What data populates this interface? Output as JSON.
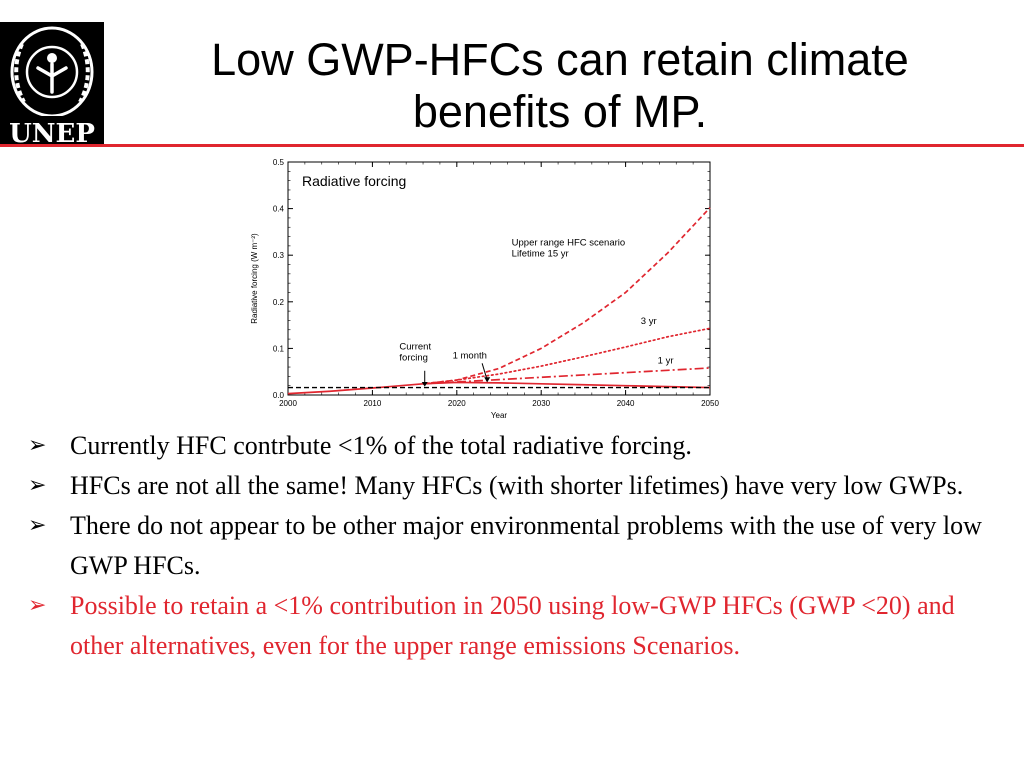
{
  "header": {
    "title_line1": "Low GWP-HFCs can retain climate",
    "title_line2": "benefits of MP.",
    "logo_text": "UNEP",
    "accent_color": "#e0262f"
  },
  "chart_data": {
    "type": "line",
    "inner_title": "Radiative forcing",
    "xlabel": "Year",
    "ylabel": "Radiative forcing  (W m⁻²)",
    "xlim": [
      2000,
      2050
    ],
    "ylim": [
      0,
      0.5
    ],
    "xticks": [
      "2000",
      "2010",
      "2020",
      "2030",
      "2040",
      "2050"
    ],
    "yticks": [
      "0.0",
      "0.1",
      "0.2",
      "0.3",
      "0.4",
      "0.5"
    ],
    "series": [
      {
        "key": "upper",
        "style": "dashed",
        "color": "#e0262f",
        "x": [
          2016,
          2020,
          2025,
          2030,
          2035,
          2040,
          2045,
          2050
        ],
        "y": [
          0.024,
          0.032,
          0.057,
          0.1,
          0.155,
          0.22,
          0.305,
          0.402
        ]
      },
      {
        "key": "3yr",
        "style": "dotted",
        "color": "#e0262f",
        "x": [
          2016,
          2020,
          2025,
          2030,
          2035,
          2040,
          2045,
          2050
        ],
        "y": [
          0.024,
          0.032,
          0.045,
          0.062,
          0.082,
          0.103,
          0.125,
          0.143
        ]
      },
      {
        "key": "1yr",
        "style": "dashdot",
        "color": "#e0262f",
        "x": [
          2016,
          2020,
          2025,
          2030,
          2035,
          2040,
          2045,
          2050
        ],
        "y": [
          0.024,
          0.028,
          0.033,
          0.038,
          0.043,
          0.048,
          0.053,
          0.058
        ]
      },
      {
        "key": "1month",
        "style": "solid",
        "color": "#e0262f",
        "x": [
          2000,
          2005,
          2010,
          2016,
          2020,
          2025,
          2030,
          2035,
          2040,
          2045,
          2050
        ],
        "y": [
          0.003,
          0.008,
          0.015,
          0.024,
          0.027,
          0.026,
          0.024,
          0.022,
          0.02,
          0.018,
          0.016
        ]
      },
      {
        "key": "current",
        "style": "dashed",
        "color": "#000000",
        "x": [
          2000,
          2050
        ],
        "y": [
          0.016,
          0.016
        ]
      }
    ],
    "annotations": [
      {
        "lines": [
          "Upper range HFC scenario",
          "Lifetime 15 yr"
        ]
      },
      {
        "lines": [
          "3 yr"
        ]
      },
      {
        "lines": [
          "1 yr"
        ]
      },
      {
        "lines": [
          "1 month"
        ]
      },
      {
        "lines": [
          "Current",
          "forcing"
        ]
      }
    ]
  },
  "bullets": [
    {
      "text": "Currently HFC contrbute <1% of the total radiative forcing.",
      "color": "#000000"
    },
    {
      "text": "HFCs are not all the same! Many HFCs (with shorter lifetimes) have very low GWPs.",
      "color": "#000000"
    },
    {
      "text": "There do not appear to be other major environmental problems with the use of very low GWP HFCs.",
      "color": "#000000"
    },
    {
      "text": "Possible to retain a <1% contribution in 2050 using low-GWP HFCs (GWP <20) and other alternatives, even for the upper range emissions Scenarios.",
      "color": "#e0262f"
    }
  ]
}
